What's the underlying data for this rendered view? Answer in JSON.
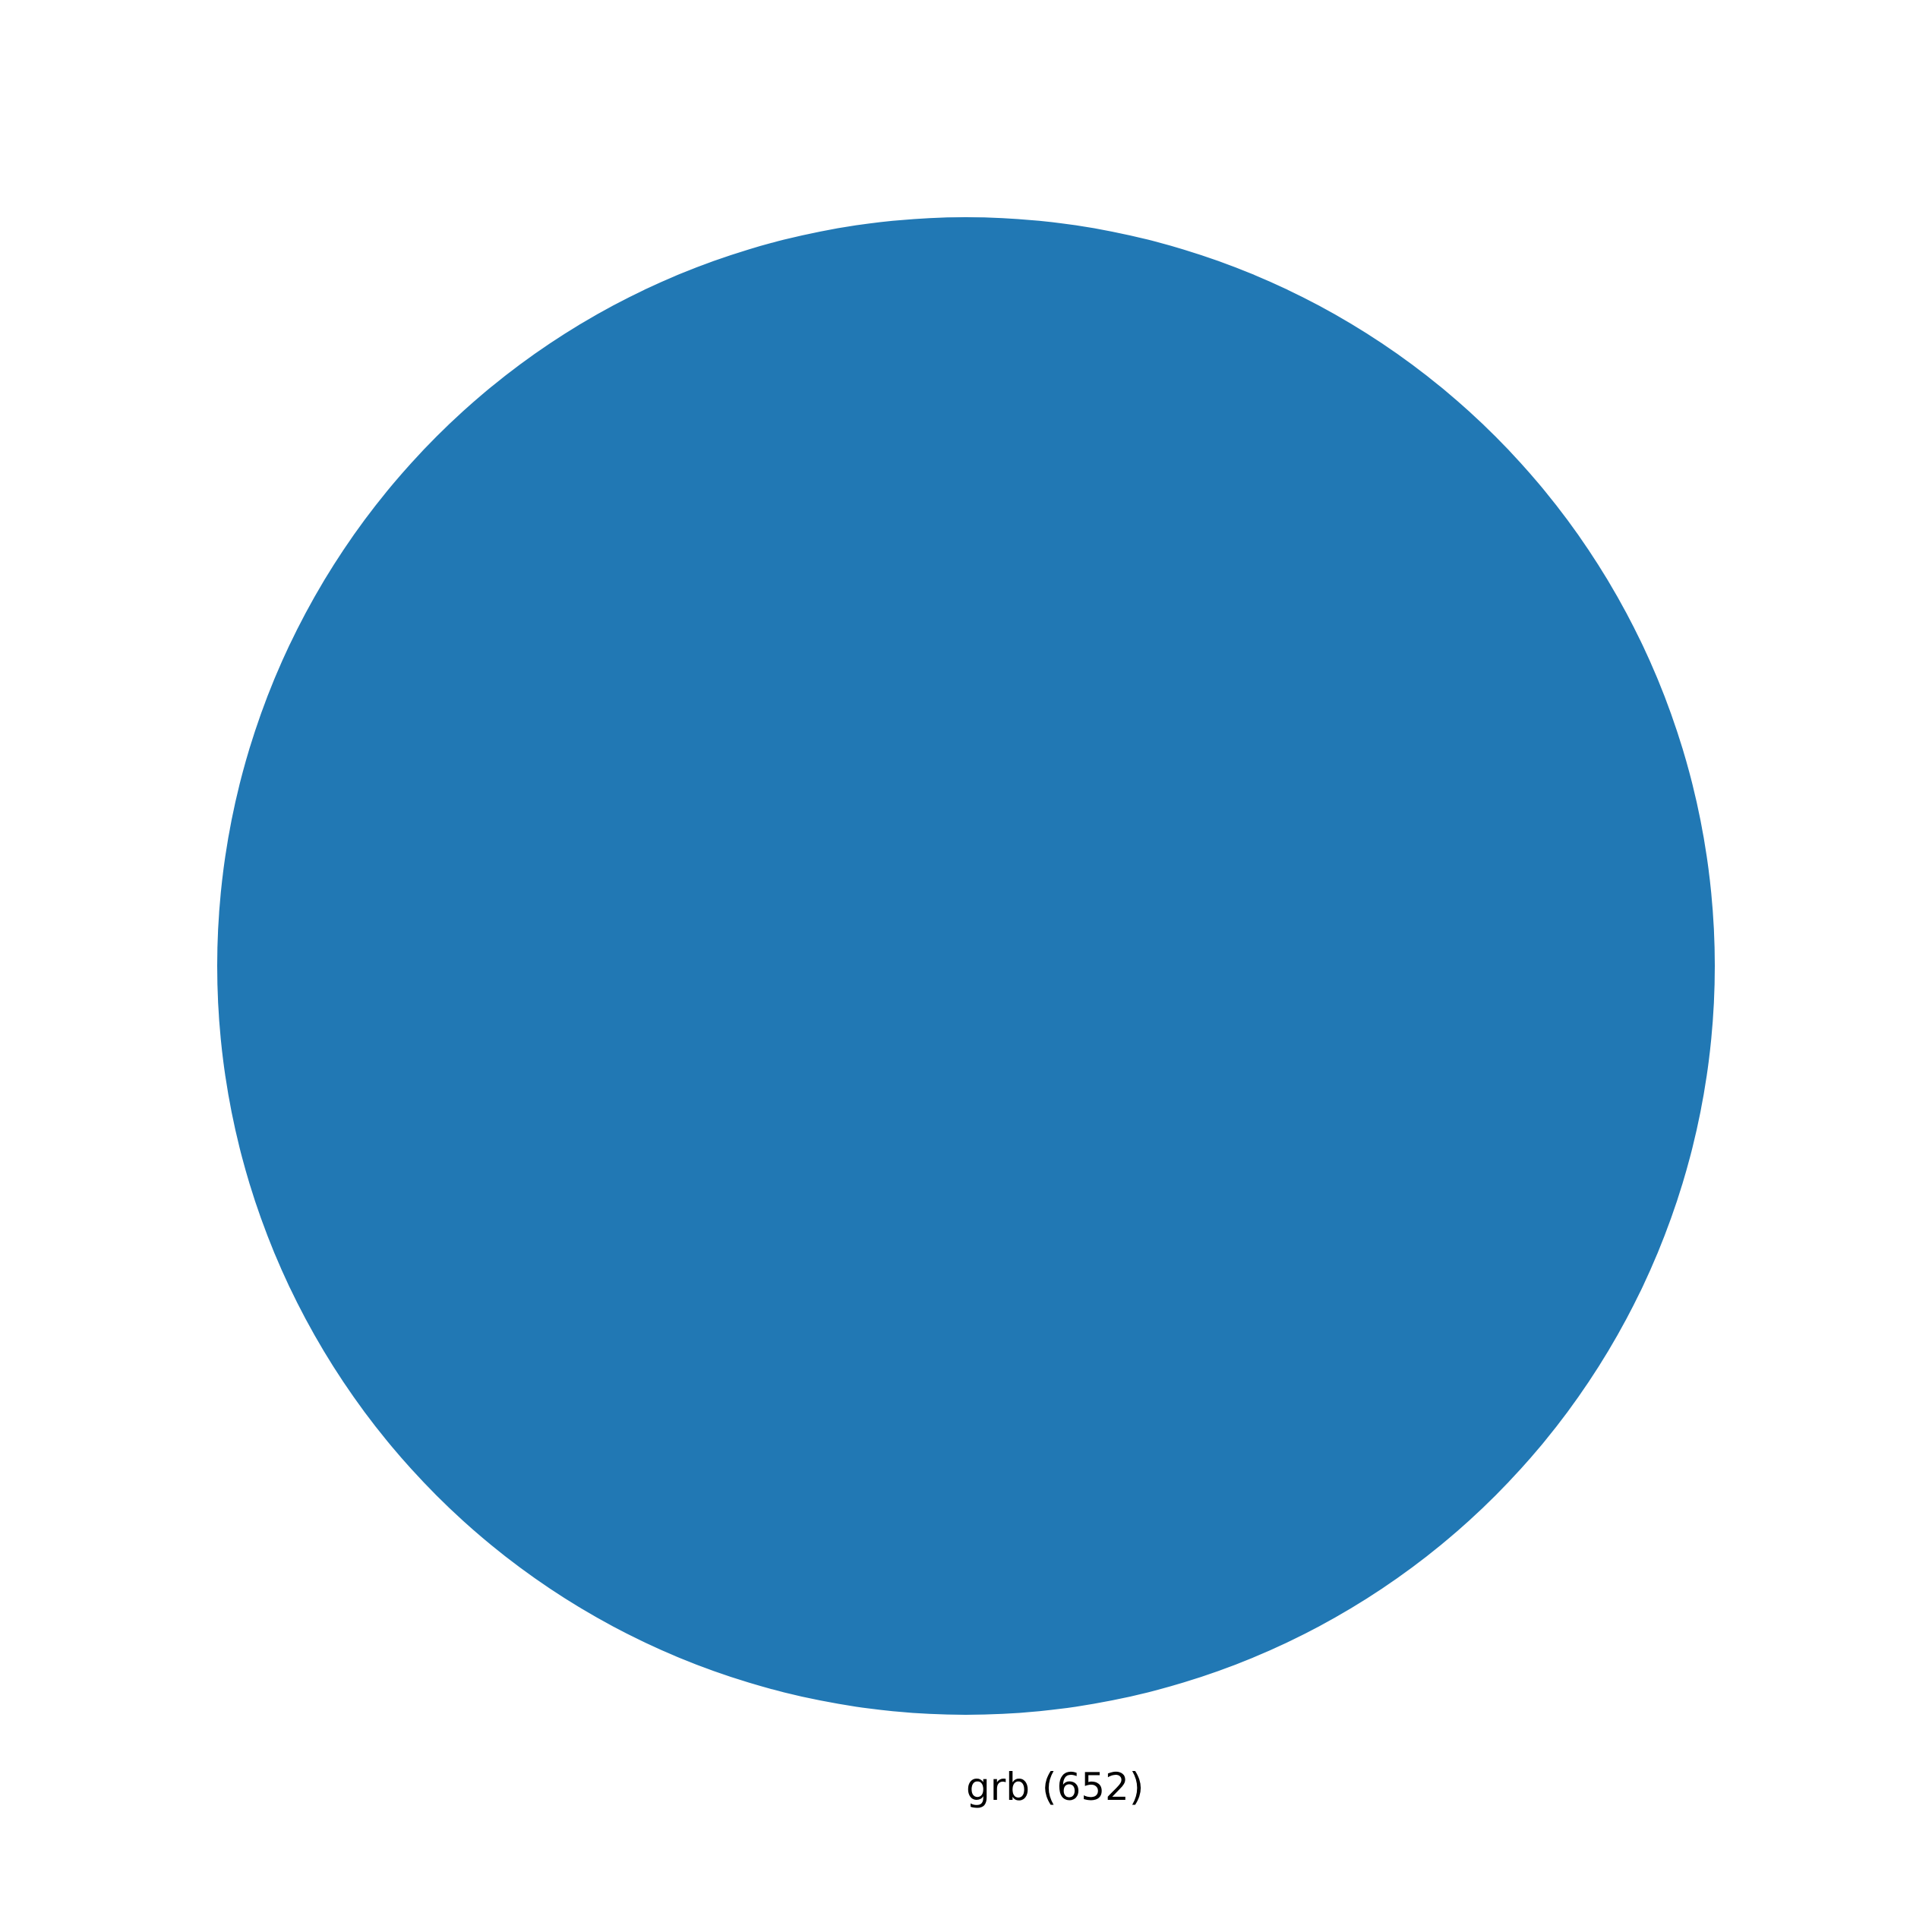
{
  "chart_data": {
    "type": "pie",
    "title": "",
    "slices": [
      {
        "label": "grb (652)",
        "category": "grb",
        "value": 652,
        "color": "#2178b4"
      }
    ],
    "legend": "none"
  }
}
